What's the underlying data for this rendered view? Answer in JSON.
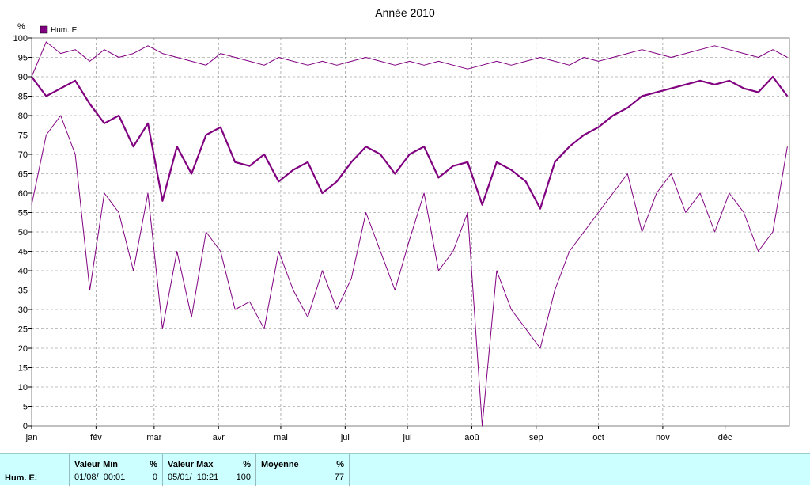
{
  "chart_data": {
    "type": "line",
    "title": "Année 2010",
    "ylabel": "%",
    "ylim": [
      0,
      100
    ],
    "yticks": [
      0,
      5,
      10,
      15,
      20,
      25,
      30,
      35,
      40,
      45,
      50,
      55,
      60,
      65,
      70,
      75,
      80,
      85,
      90,
      95,
      100
    ],
    "xlim": [
      1,
      366
    ],
    "month_labels": [
      {
        "label": "jan",
        "day": 1
      },
      {
        "label": "fév",
        "day": 32
      },
      {
        "label": "mar",
        "day": 60
      },
      {
        "label": "avr",
        "day": 91
      },
      {
        "label": "mai",
        "day": 121
      },
      {
        "label": "jui",
        "day": 152
      },
      {
        "label": "jui",
        "day": 182
      },
      {
        "label": "aoû",
        "day": 213
      },
      {
        "label": "sep",
        "day": 244
      },
      {
        "label": "oct",
        "day": 274
      },
      {
        "label": "nov",
        "day": 305
      },
      {
        "label": "déc",
        "day": 335
      }
    ],
    "grid": true,
    "legend": {
      "position": "top-left",
      "entries": [
        {
          "label": "Hum. E.",
          "color": "#800080"
        }
      ]
    },
    "series": [
      {
        "name": "Hum. E.",
        "role": "max",
        "color": "#800080",
        "x": [
          1,
          8,
          15,
          22,
          29,
          36,
          43,
          50,
          57,
          64,
          71,
          78,
          85,
          92,
          99,
          106,
          113,
          120,
          127,
          134,
          141,
          148,
          155,
          162,
          169,
          176,
          183,
          190,
          197,
          204,
          211,
          218,
          225,
          232,
          239,
          246,
          253,
          260,
          267,
          274,
          281,
          288,
          295,
          302,
          309,
          316,
          323,
          330,
          337,
          344,
          351,
          358,
          365
        ],
        "y": [
          90,
          99,
          96,
          97,
          94,
          97,
          95,
          96,
          98,
          96,
          95,
          94,
          93,
          96,
          95,
          94,
          93,
          95,
          94,
          93,
          94,
          93,
          94,
          95,
          94,
          93,
          94,
          93,
          94,
          93,
          92,
          93,
          94,
          93,
          94,
          95,
          94,
          93,
          95,
          94,
          95,
          96,
          97,
          96,
          95,
          96,
          97,
          98,
          97,
          96,
          95,
          97,
          95
        ]
      },
      {
        "name": "Hum. E.",
        "role": "mean",
        "color": "#800080",
        "x": [
          1,
          8,
          15,
          22,
          29,
          36,
          43,
          50,
          57,
          64,
          71,
          78,
          85,
          92,
          99,
          106,
          113,
          120,
          127,
          134,
          141,
          148,
          155,
          162,
          169,
          176,
          183,
          190,
          197,
          204,
          211,
          218,
          225,
          232,
          239,
          246,
          253,
          260,
          267,
          274,
          281,
          288,
          295,
          302,
          309,
          316,
          323,
          330,
          337,
          344,
          351,
          358,
          365
        ],
        "y": [
          90,
          85,
          87,
          89,
          83,
          78,
          80,
          72,
          78,
          58,
          72,
          65,
          75,
          77,
          68,
          67,
          70,
          63,
          66,
          68,
          60,
          63,
          68,
          72,
          70,
          65,
          70,
          72,
          64,
          67,
          68,
          57,
          68,
          66,
          63,
          56,
          68,
          72,
          75,
          77,
          80,
          82,
          85,
          86,
          87,
          88,
          89,
          88,
          89,
          87,
          86,
          90,
          85
        ]
      },
      {
        "name": "Hum. E.",
        "role": "min",
        "color": "#800080",
        "x": [
          1,
          8,
          15,
          22,
          29,
          36,
          43,
          50,
          57,
          64,
          71,
          78,
          85,
          92,
          99,
          106,
          113,
          120,
          127,
          134,
          141,
          148,
          155,
          162,
          169,
          176,
          183,
          190,
          197,
          204,
          211,
          218,
          225,
          232,
          239,
          246,
          253,
          260,
          267,
          274,
          281,
          288,
          295,
          302,
          309,
          316,
          323,
          330,
          337,
          344,
          351,
          358,
          365
        ],
        "y": [
          57,
          75,
          80,
          70,
          35,
          60,
          55,
          40,
          60,
          25,
          45,
          28,
          50,
          45,
          30,
          32,
          25,
          45,
          35,
          28,
          40,
          30,
          38,
          55,
          45,
          35,
          48,
          60,
          40,
          45,
          55,
          0,
          40,
          30,
          25,
          20,
          35,
          45,
          50,
          55,
          60,
          65,
          50,
          60,
          65,
          55,
          60,
          50,
          60,
          55,
          45,
          50,
          72
        ]
      }
    ]
  },
  "stats": {
    "series_name": "Hum. E.",
    "min": {
      "label": "Valeur Min",
      "unit": "%",
      "datetime": "01/08/  00:01",
      "value": "0"
    },
    "max": {
      "label": "Valeur Max",
      "unit": "%",
      "datetime": "05/01/  10:21",
      "value": "100"
    },
    "avg": {
      "label": "Moyenne",
      "unit": "%",
      "value": "77"
    }
  }
}
